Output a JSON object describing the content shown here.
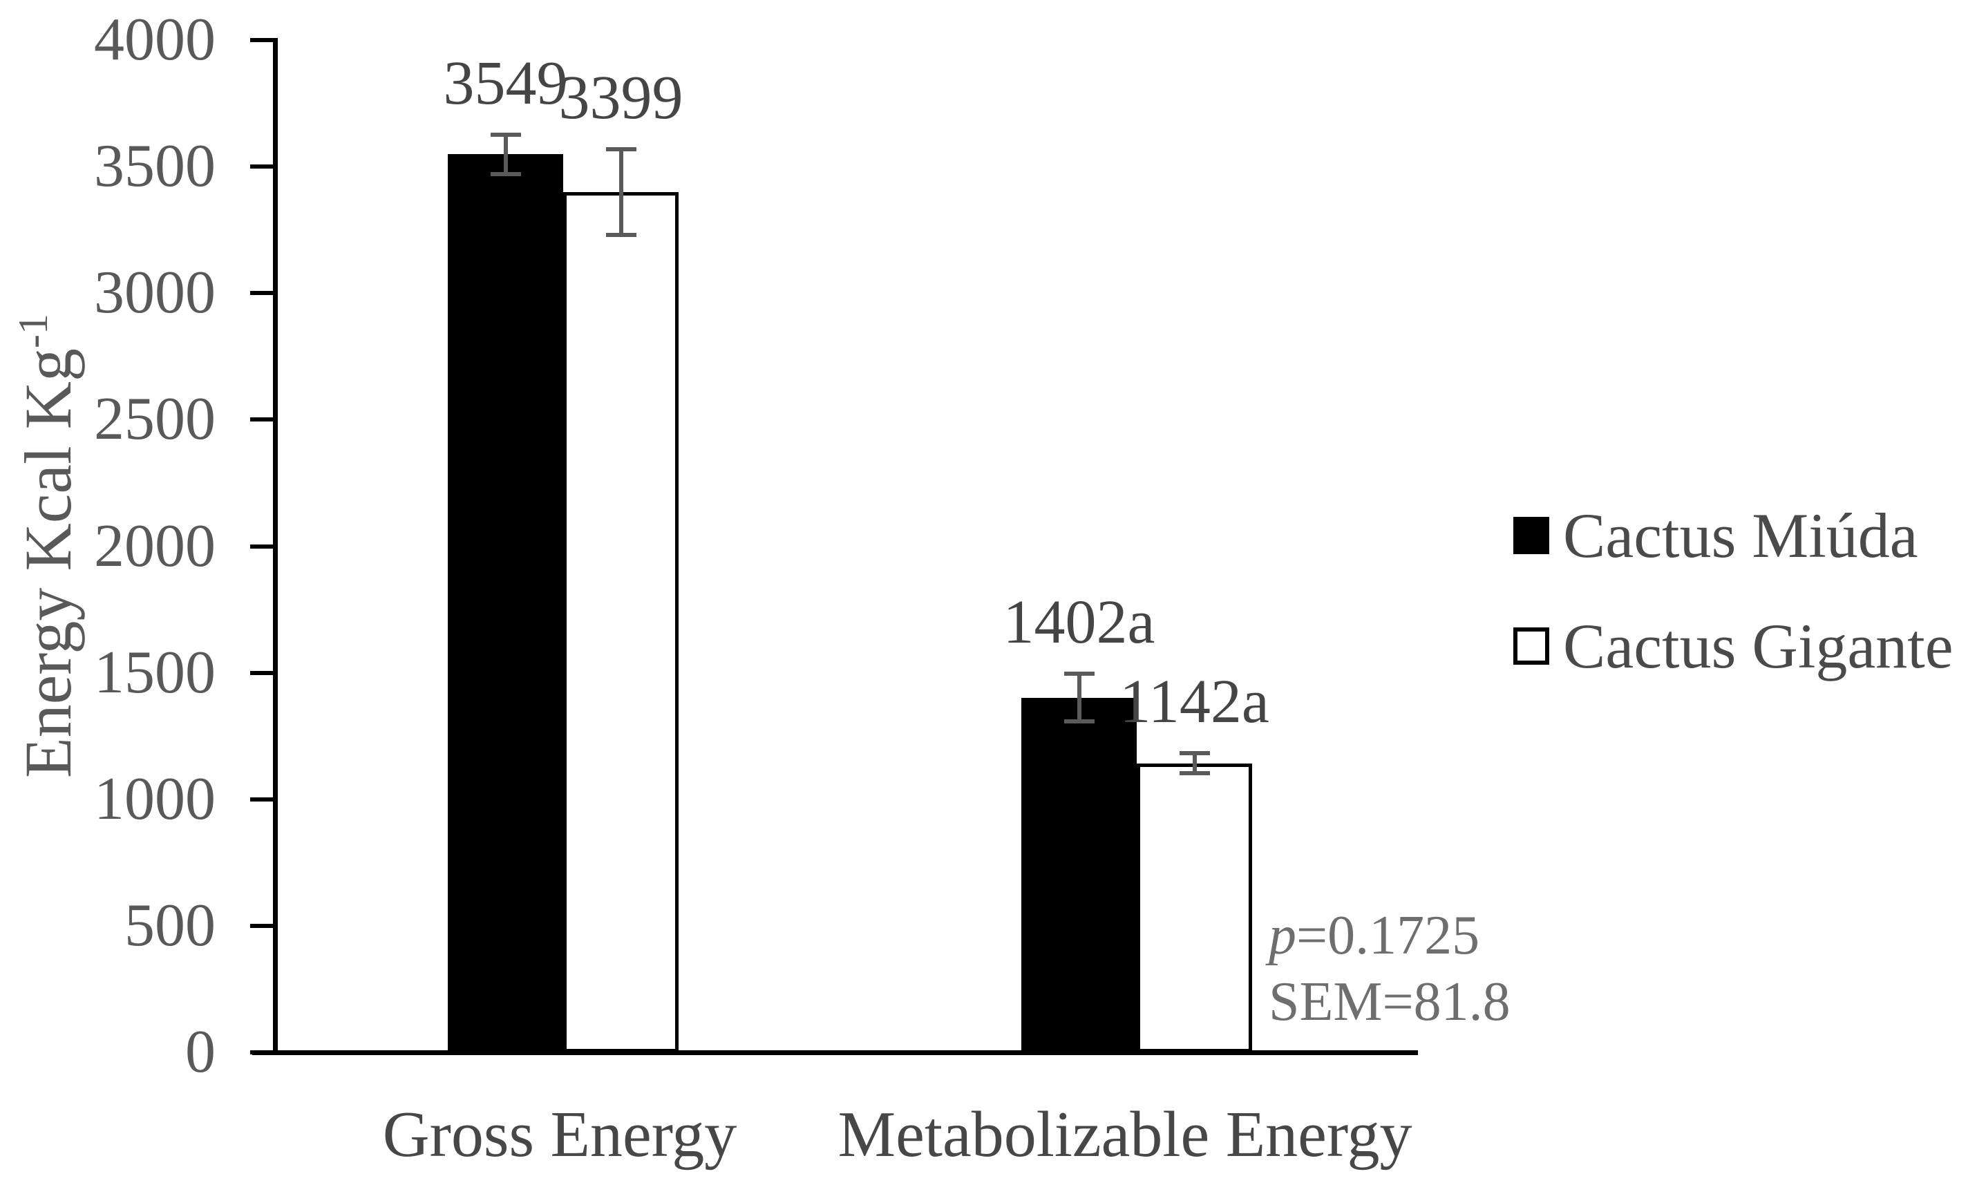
{
  "chart_data": {
    "type": "bar",
    "title": "",
    "ylabel_text": "Energy Kcal Kg",
    "ylabel_superscript": "-1",
    "categories": [
      "Gross Energy",
      "Metabolizable Energy"
    ],
    "series": [
      {
        "name": "Cactus Miúda",
        "fill": "#000000",
        "values": [
          3549,
          1402
        ],
        "value_labels": [
          "3549",
          "1402a"
        ],
        "errors": [
          78,
          95
        ]
      },
      {
        "name": "Cactus Gigante",
        "fill": "#ffffff",
        "values": [
          3399,
          1142
        ],
        "value_labels": [
          "3399",
          "1142a"
        ],
        "errors": [
          170,
          40
        ]
      }
    ],
    "ylim": [
      0,
      4000
    ],
    "yticks": [
      0,
      500,
      1000,
      1500,
      2000,
      2500,
      3000,
      3500,
      4000
    ],
    "grid": false,
    "legend_position": "right",
    "annotations": [
      {
        "prefix_italic": "p",
        "text": "=0.1725"
      },
      {
        "prefix_italic": "",
        "text": "SEM=81.8"
      }
    ]
  },
  "legend": {
    "items": [
      {
        "label": "Cactus Miúda",
        "swatch_fill": "#000000"
      },
      {
        "label": "Cactus Gigante",
        "swatch_fill": "#ffffff"
      }
    ]
  },
  "colors": {
    "bar_black": "#000000",
    "bar_white": "#ffffff",
    "bar_border": "#000000",
    "error_bar": "#5a5a5a",
    "axis": "#000000",
    "tick_label": "#595959",
    "data_label": "#454545",
    "category_label": "#474747",
    "legend_label": "#4a4a4a",
    "annotation": "#6e6e6e",
    "background": "#ffffff"
  }
}
